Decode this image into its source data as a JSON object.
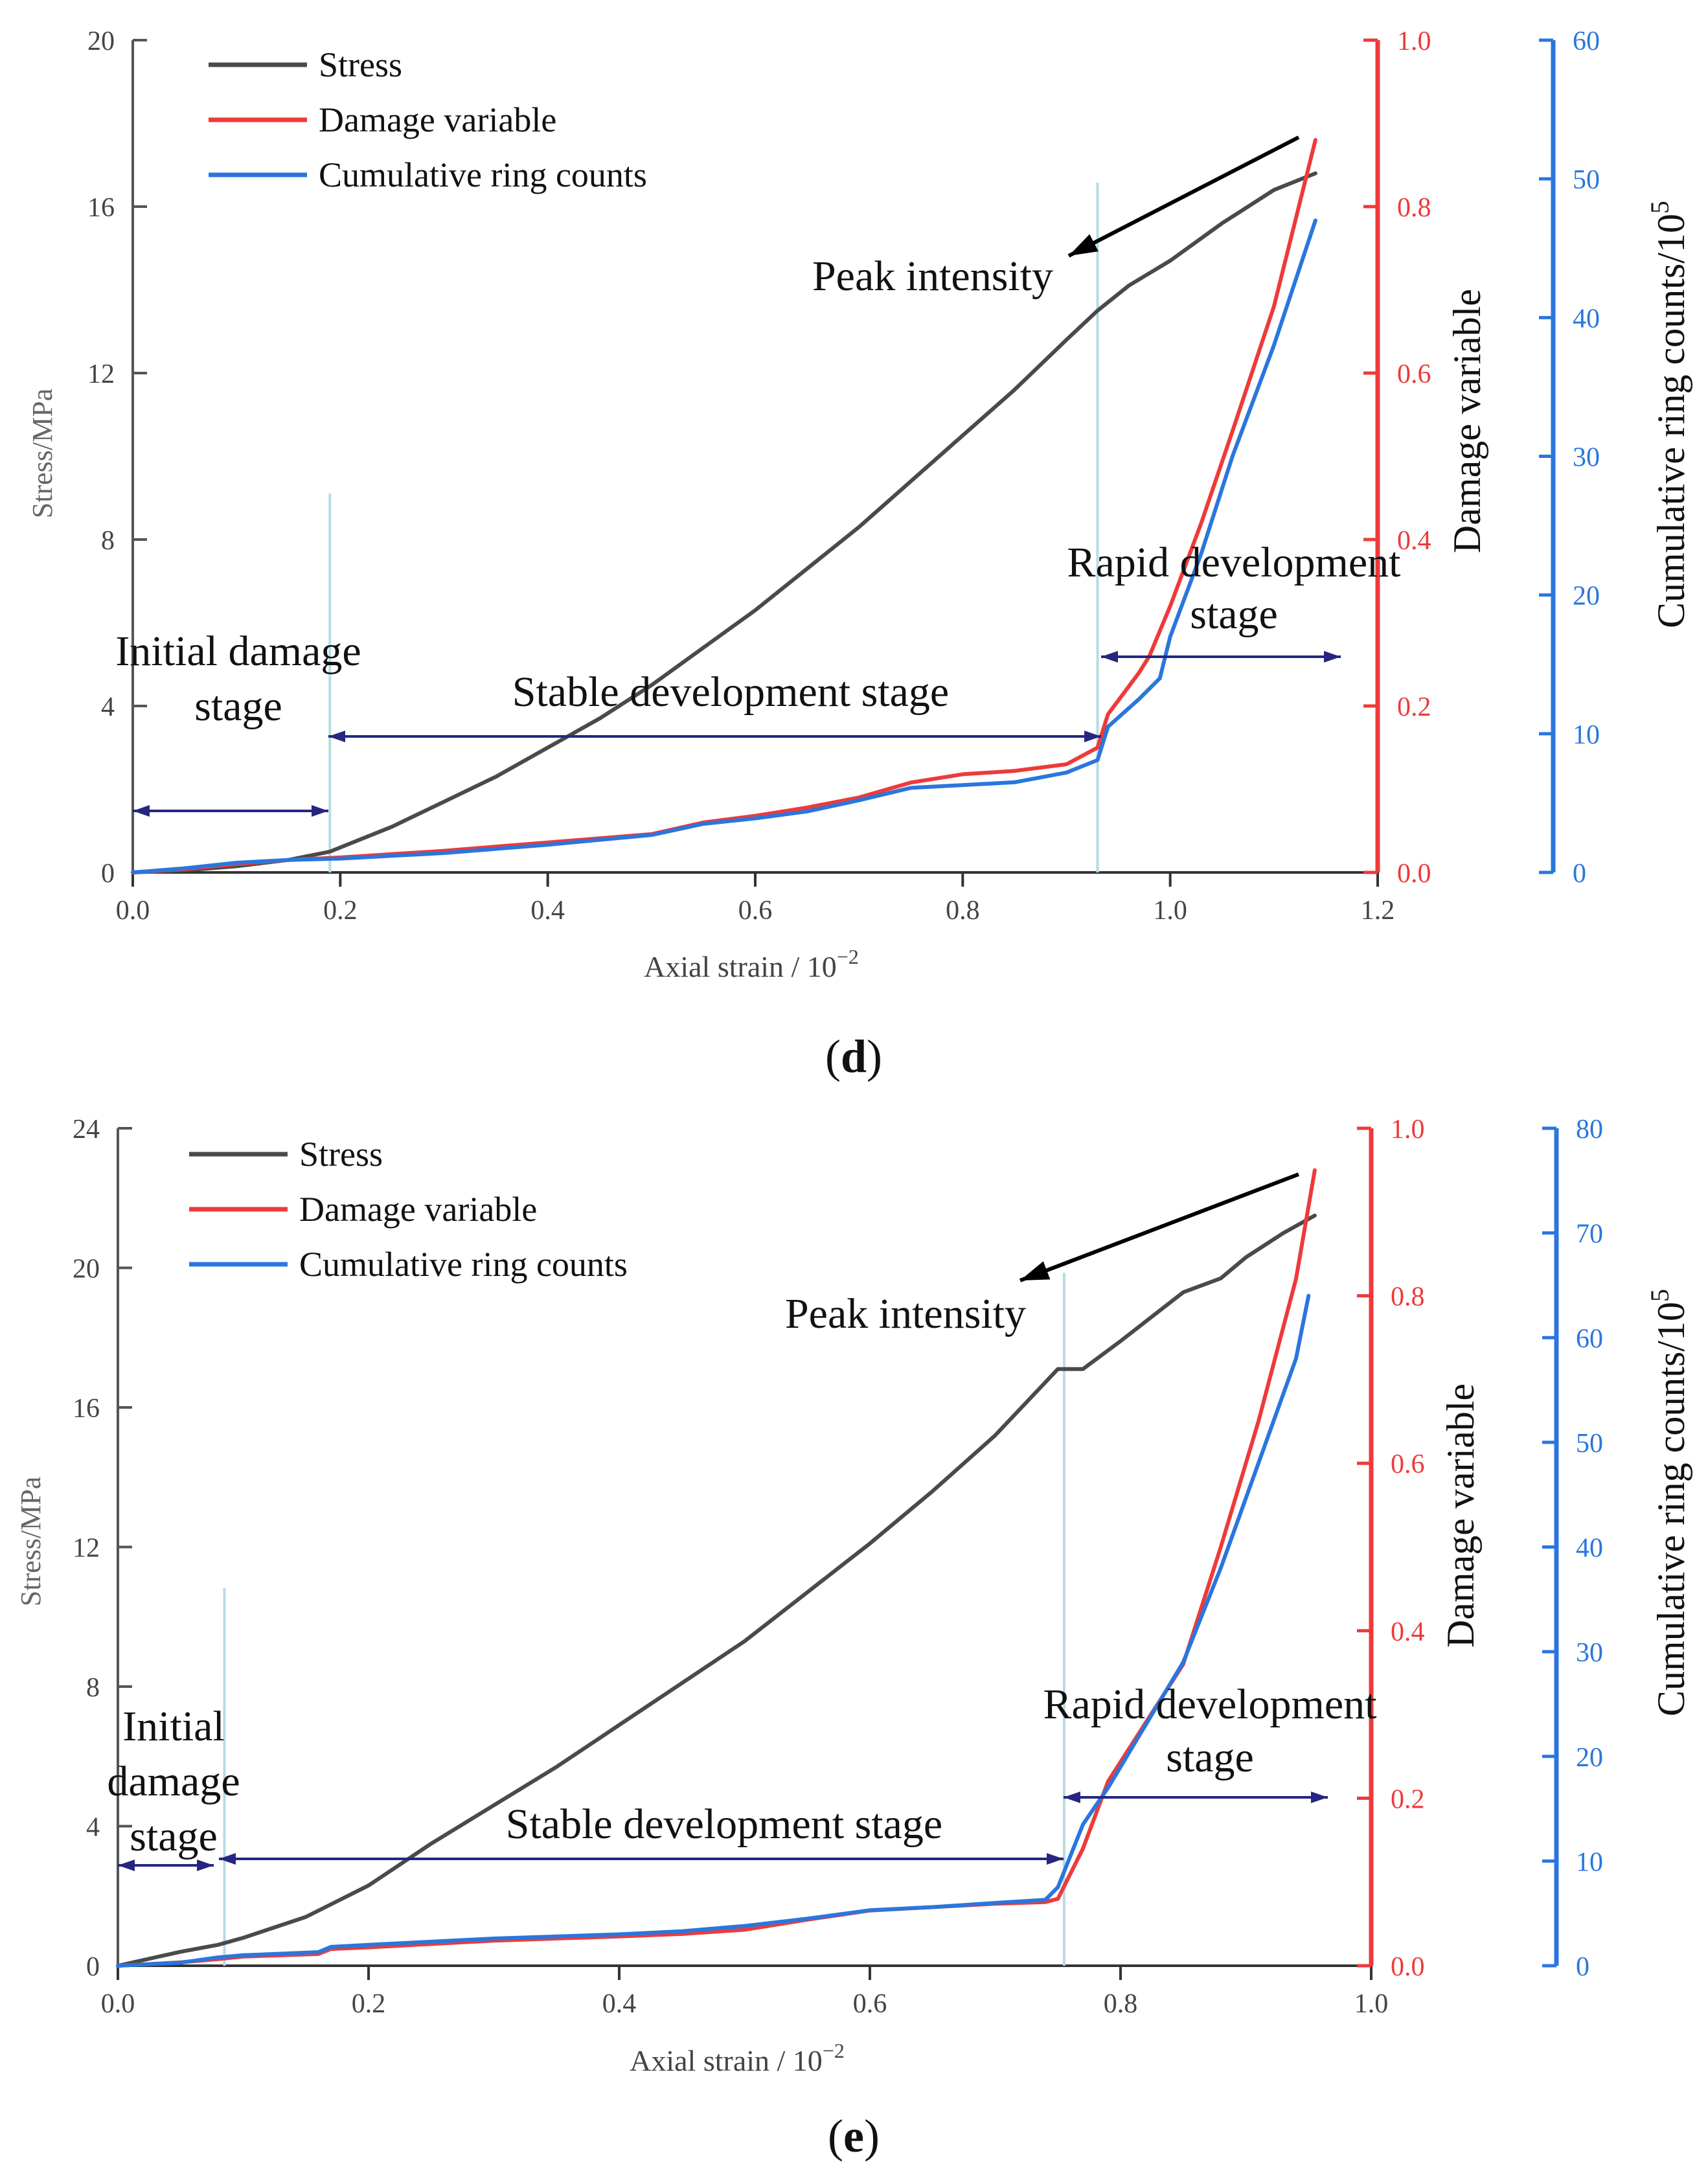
{
  "colors": {
    "stress": "#4a4a4a",
    "damage": "#ee3a3a",
    "ring": "#2a76dd",
    "axis_left": "#555555",
    "stage_arrow": "#262680",
    "divider": "#b7dbe4",
    "peak_arrow": "#000000"
  },
  "chart_data": [
    {
      "type": "line",
      "panel_label": "(d)",
      "xlabel": "Axial strain / 10^-2",
      "xlabel_base": "Axial strain / 10",
      "xlabel_exp": "−2",
      "xlim": [
        0,
        1.2
      ],
      "xticks": [
        "0.0",
        "0.2",
        "0.4",
        "0.6",
        "0.8",
        "1.0",
        "1.2"
      ],
      "ylabel": "Stress/MPa",
      "ylim": [
        0,
        20
      ],
      "yticks": [
        "0",
        "4",
        "8",
        "12",
        "16",
        "20"
      ],
      "y2label": "Damage variable",
      "y2lim": [
        0,
        1.0
      ],
      "y2ticks": [
        "0.0",
        "0.2",
        "0.4",
        "0.6",
        "0.8",
        "1.0"
      ],
      "y3label": "Cumulative ring counts/10^5",
      "y3label_base": "Cumulative ring counts/10",
      "y3label_exp": "5",
      "y3lim": [
        0,
        60
      ],
      "y3ticks": [
        "0",
        "10",
        "20",
        "30",
        "40",
        "50",
        "60"
      ],
      "legend": [
        "Stress",
        "Damage variable",
        "Cumulative ring counts"
      ],
      "series": [
        {
          "name": "Stress",
          "axis": "stress",
          "x": [
            0,
            0.05,
            0.1,
            0.15,
            0.19,
            0.25,
            0.3,
            0.35,
            0.4,
            0.45,
            0.5,
            0.55,
            0.6,
            0.65,
            0.7,
            0.75,
            0.8,
            0.85,
            0.9,
            0.93,
            0.96,
            1.0,
            1.05,
            1.1,
            1.14
          ],
          "values": [
            0,
            0.05,
            0.15,
            0.3,
            0.5,
            1.1,
            1.7,
            2.3,
            3.0,
            3.7,
            4.5,
            5.4,
            6.3,
            7.3,
            8.3,
            9.4,
            10.5,
            11.6,
            12.8,
            13.5,
            14.1,
            14.7,
            15.6,
            16.4,
            16.8
          ]
        },
        {
          "name": "Damage variable",
          "axis": "damage",
          "x": [
            0,
            0.05,
            0.1,
            0.15,
            0.2,
            0.3,
            0.4,
            0.5,
            0.55,
            0.6,
            0.65,
            0.7,
            0.75,
            0.8,
            0.85,
            0.9,
            0.93,
            0.94,
            0.97,
            0.98,
            1.0,
            1.03,
            1.06,
            1.1,
            1.14
          ],
          "values": [
            0,
            0.004,
            0.01,
            0.015,
            0.018,
            0.026,
            0.036,
            0.046,
            0.06,
            0.068,
            0.078,
            0.09,
            0.108,
            0.118,
            0.122,
            0.13,
            0.15,
            0.19,
            0.24,
            0.26,
            0.32,
            0.42,
            0.53,
            0.68,
            0.88
          ]
        },
        {
          "name": "Cumulative ring counts",
          "axis": "ring",
          "x": [
            0,
            0.05,
            0.1,
            0.15,
            0.2,
            0.3,
            0.4,
            0.5,
            0.55,
            0.6,
            0.65,
            0.7,
            0.75,
            0.8,
            0.85,
            0.9,
            0.93,
            0.94,
            0.97,
            0.99,
            1.0,
            1.03,
            1.06,
            1.1,
            1.14
          ],
          "values": [
            0,
            0.3,
            0.7,
            0.9,
            1.0,
            1.4,
            2.0,
            2.7,
            3.5,
            3.9,
            4.4,
            5.2,
            6.1,
            6.3,
            6.5,
            7.2,
            8.1,
            10.5,
            12.5,
            14.0,
            17.0,
            23.0,
            30.0,
            38.0,
            47.0
          ]
        }
      ],
      "annotations": {
        "peak": "Peak intensity",
        "initial": "Initial damage stage",
        "initial_lines": [
          "Initial damage",
          "stage"
        ],
        "stable": "Stable development stage",
        "rapid": "Rapid development stage",
        "rapid_lines": [
          "Rapid development",
          "stage"
        ]
      },
      "stage_boundaries_x": [
        0.19,
        0.93
      ]
    },
    {
      "type": "line",
      "panel_label": "(e)",
      "xlabel": "Axial strain / 10^-2",
      "xlabel_base": "Axial strain / 10",
      "xlabel_exp": "−2",
      "xlim": [
        0,
        1.0
      ],
      "xticks": [
        "0.0",
        "0.2",
        "0.4",
        "0.6",
        "0.8",
        "1.0"
      ],
      "ylabel": "Stress/MPa",
      "ylim": [
        0,
        24
      ],
      "yticks": [
        "0",
        "4",
        "8",
        "12",
        "16",
        "20",
        "24"
      ],
      "y2label": "Damage variable",
      "y2lim": [
        0,
        1.0
      ],
      "y2ticks": [
        "0.0",
        "0.2",
        "0.4",
        "0.6",
        "0.8",
        "1.0"
      ],
      "y3label": "Cumulative ring counts/10^5",
      "y3label_base": "Cumulative ring counts/10",
      "y3label_exp": "5",
      "y3lim": [
        0,
        80
      ],
      "y3ticks": [
        "0",
        "10",
        "20",
        "30",
        "40",
        "50",
        "60",
        "70",
        "80"
      ],
      "legend": [
        "Stress",
        "Damage variable",
        "Cumulative ring counts"
      ],
      "series": [
        {
          "name": "Stress",
          "axis": "stress",
          "x": [
            0,
            0.05,
            0.08,
            0.1,
            0.15,
            0.2,
            0.25,
            0.3,
            0.35,
            0.4,
            0.45,
            0.5,
            0.55,
            0.6,
            0.65,
            0.7,
            0.75,
            0.77,
            0.8,
            0.85,
            0.88,
            0.9,
            0.93,
            0.955
          ],
          "values": [
            0,
            0.4,
            0.6,
            0.8,
            1.4,
            2.3,
            3.5,
            4.6,
            5.7,
            6.9,
            8.1,
            9.3,
            10.7,
            12.1,
            13.6,
            15.2,
            17.1,
            17.1,
            17.9,
            19.3,
            19.7,
            20.3,
            21.0,
            21.5
          ]
        },
        {
          "name": "Damage variable",
          "axis": "damage",
          "x": [
            0,
            0.05,
            0.08,
            0.1,
            0.16,
            0.17,
            0.2,
            0.3,
            0.4,
            0.45,
            0.5,
            0.55,
            0.6,
            0.65,
            0.7,
            0.74,
            0.75,
            0.77,
            0.79,
            0.82,
            0.85,
            0.88,
            0.91,
            0.94,
            0.955
          ],
          "values": [
            0,
            0.004,
            0.008,
            0.011,
            0.014,
            0.02,
            0.022,
            0.03,
            0.035,
            0.038,
            0.043,
            0.055,
            0.066,
            0.07,
            0.074,
            0.076,
            0.08,
            0.14,
            0.22,
            0.29,
            0.36,
            0.5,
            0.65,
            0.82,
            0.95
          ]
        },
        {
          "name": "Cumulative ring counts",
          "axis": "ring",
          "x": [
            0,
            0.05,
            0.08,
            0.1,
            0.16,
            0.17,
            0.2,
            0.3,
            0.4,
            0.45,
            0.5,
            0.55,
            0.6,
            0.65,
            0.7,
            0.74,
            0.75,
            0.77,
            0.79,
            0.82,
            0.85,
            0.88,
            0.91,
            0.94,
            0.95
          ],
          "values": [
            0,
            0.3,
            0.8,
            1.0,
            1.3,
            1.8,
            2.0,
            2.6,
            3.0,
            3.3,
            3.8,
            4.5,
            5.3,
            5.6,
            6.0,
            6.3,
            7.5,
            13.5,
            17.0,
            23.0,
            29.0,
            38.0,
            48.0,
            58.0,
            64.0
          ]
        }
      ],
      "annotations": {
        "peak": "Peak intensity",
        "initial": "Initial damage stage",
        "initial_lines": [
          "Initial",
          "damage",
          "stage"
        ],
        "stable": "Stable development stage",
        "rapid": "Rapid development stage",
        "rapid_lines": [
          "Rapid development",
          "stage"
        ]
      },
      "stage_boundaries_x": [
        0.085,
        0.755
      ]
    }
  ]
}
